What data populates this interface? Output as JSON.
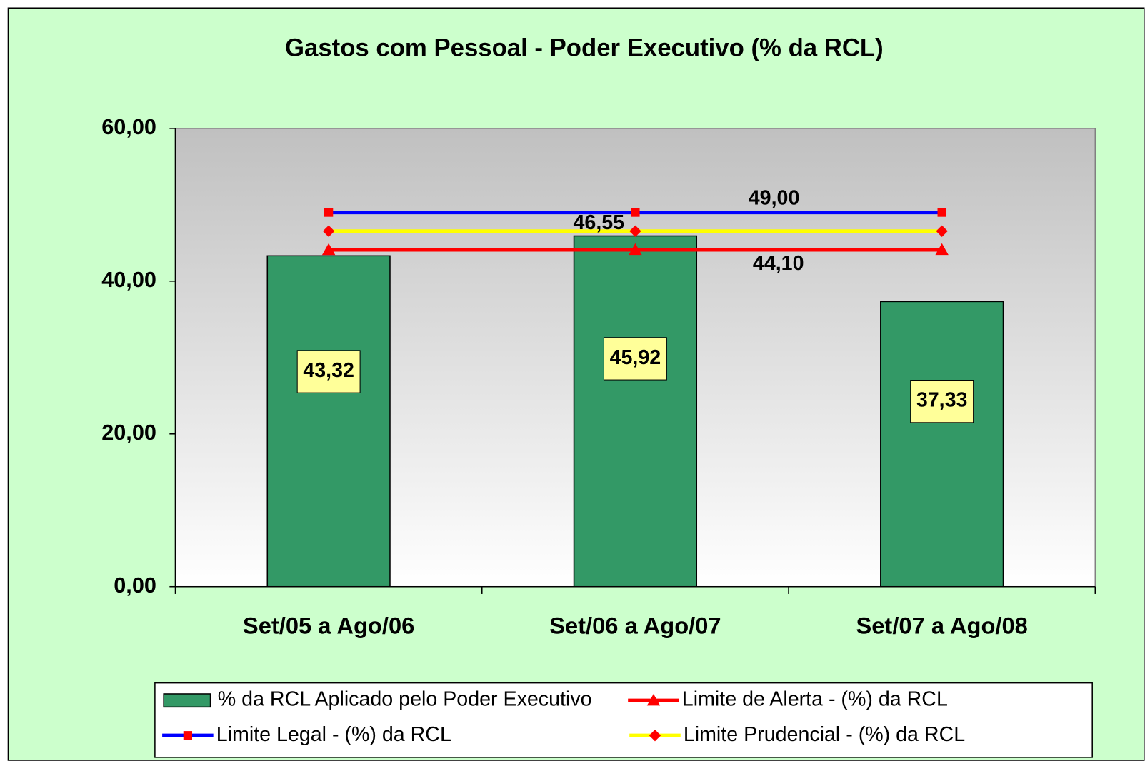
{
  "chart_data": {
    "type": "bar",
    "title": "Gastos com Pessoal - Poder Executivo (% da RCL)",
    "categories": [
      "Set/05 a Ago/06",
      "Set/06 a Ago/07",
      "Set/07 a Ago/08"
    ],
    "series": [
      {
        "name": "% da RCL Aplicado pelo Poder Executivo",
        "type": "bar",
        "color": "#339966",
        "values": [
          43.32,
          45.92,
          37.33
        ],
        "value_labels": [
          "43,32",
          "45,92",
          "37,33"
        ]
      },
      {
        "name": "Limite de Alerta - (%) da RCL",
        "type": "line",
        "color": "#ff0000",
        "marker": "triangle",
        "marker_color": "#ff0000",
        "values": [
          44.1,
          44.1,
          44.1
        ],
        "value_labels": [
          null,
          "44,10",
          null
        ]
      },
      {
        "name": "Limite Legal - (%) da RCL",
        "type": "line",
        "color": "#0000ff",
        "marker": "square",
        "marker_color": "#ff0000",
        "values": [
          49.0,
          49.0,
          49.0
        ],
        "value_labels": [
          null,
          "49,00",
          null
        ]
      },
      {
        "name": "Limite Prudencial - (%) da RCL",
        "type": "line",
        "color": "#ffff00",
        "marker": "diamond",
        "marker_color": "#ff0000",
        "values": [
          46.55,
          46.55,
          46.55
        ],
        "value_labels": [
          null,
          "46,55",
          null
        ]
      }
    ],
    "ylim": [
      0,
      60
    ],
    "yticks": [
      {
        "value": 0,
        "label": "0,00"
      },
      {
        "value": 20,
        "label": "20,00"
      },
      {
        "value": 40,
        "label": "40,00"
      },
      {
        "value": 60,
        "label": "60,00"
      }
    ]
  }
}
